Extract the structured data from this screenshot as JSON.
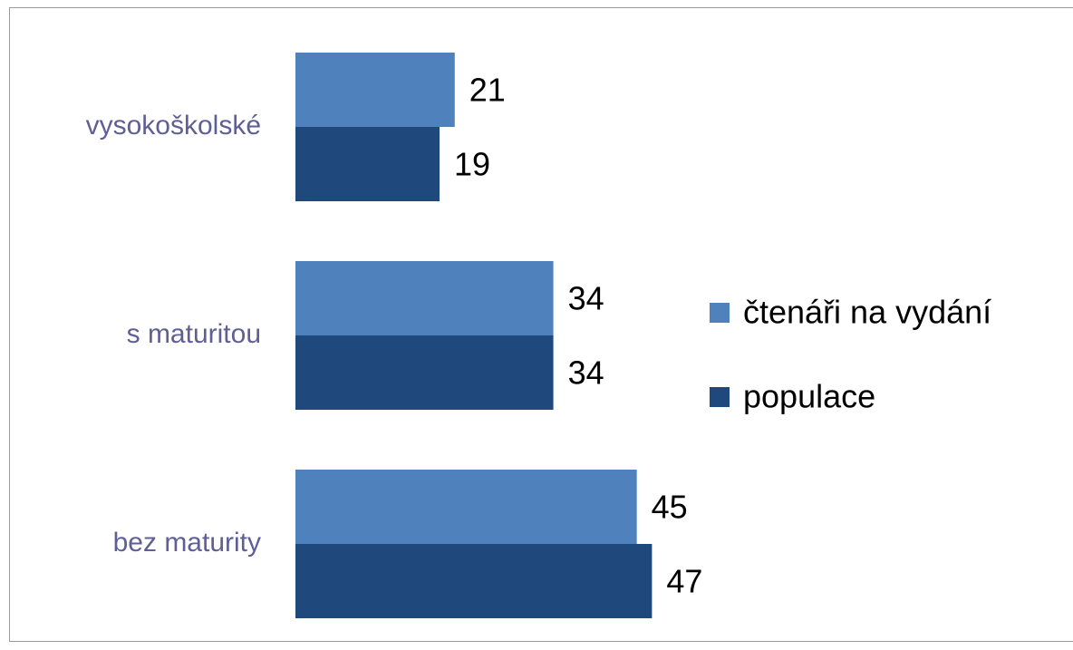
{
  "chart_data": {
    "type": "barh",
    "categories": [
      "vysokoškolské",
      "s maturitou",
      "bez maturity"
    ],
    "series": [
      {
        "name": "čtenáři na vydání",
        "color": "#4f81bd",
        "values": [
          21,
          34,
          45
        ]
      },
      {
        "name": "populace",
        "color": "#1f497d",
        "values": [
          19,
          34,
          47
        ]
      }
    ],
    "xlim": [
      0,
      100
    ],
    "legend": "right"
  }
}
